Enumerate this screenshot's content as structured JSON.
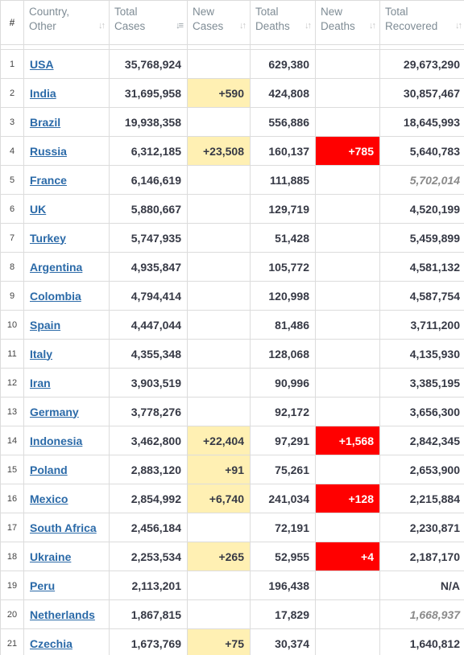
{
  "columns": {
    "num": "#",
    "country": [
      "Country,",
      "Other"
    ],
    "total_cases": [
      "Total",
      "Cases"
    ],
    "new_cases": [
      "New",
      "Cases"
    ],
    "total_deaths": [
      "Total",
      "Deaths"
    ],
    "new_deaths": [
      "New",
      "Deaths"
    ],
    "total_recovered": [
      "Total",
      "Recovered"
    ]
  },
  "icons": {
    "sort_default": "sort-arrows-icon",
    "sort_active": "sort-descending-icon"
  },
  "colors": {
    "new_cases_highlight": "#fff0b3",
    "new_deaths_highlight": "#ff0000",
    "link": "#2b6aa8"
  },
  "chart_data": {
    "type": "table",
    "headers": [
      "#",
      "Country, Other",
      "Total Cases",
      "New Cases",
      "Total Deaths",
      "New Deaths",
      "Total Recovered"
    ],
    "rows": [
      {
        "rank": "1",
        "country": "USA",
        "total_cases": "35,768,924",
        "new_cases": "",
        "total_deaths": "629,380",
        "new_deaths": "",
        "total_recovered": "29,673,290",
        "recovered_italic": false
      },
      {
        "rank": "2",
        "country": "India",
        "total_cases": "31,695,958",
        "new_cases": "+590",
        "total_deaths": "424,808",
        "new_deaths": "",
        "total_recovered": "30,857,467",
        "recovered_italic": false
      },
      {
        "rank": "3",
        "country": "Brazil",
        "total_cases": "19,938,358",
        "new_cases": "",
        "total_deaths": "556,886",
        "new_deaths": "",
        "total_recovered": "18,645,993",
        "recovered_italic": false
      },
      {
        "rank": "4",
        "country": "Russia",
        "total_cases": "6,312,185",
        "new_cases": "+23,508",
        "total_deaths": "160,137",
        "new_deaths": "+785",
        "total_recovered": "5,640,783",
        "recovered_italic": false
      },
      {
        "rank": "5",
        "country": "France",
        "total_cases": "6,146,619",
        "new_cases": "",
        "total_deaths": "111,885",
        "new_deaths": "",
        "total_recovered": "5,702,014",
        "recovered_italic": true
      },
      {
        "rank": "6",
        "country": "UK",
        "total_cases": "5,880,667",
        "new_cases": "",
        "total_deaths": "129,719",
        "new_deaths": "",
        "total_recovered": "4,520,199",
        "recovered_italic": false
      },
      {
        "rank": "7",
        "country": "Turkey",
        "total_cases": "5,747,935",
        "new_cases": "",
        "total_deaths": "51,428",
        "new_deaths": "",
        "total_recovered": "5,459,899",
        "recovered_italic": false
      },
      {
        "rank": "8",
        "country": "Argentina",
        "total_cases": "4,935,847",
        "new_cases": "",
        "total_deaths": "105,772",
        "new_deaths": "",
        "total_recovered": "4,581,132",
        "recovered_italic": false
      },
      {
        "rank": "9",
        "country": "Colombia",
        "total_cases": "4,794,414",
        "new_cases": "",
        "total_deaths": "120,998",
        "new_deaths": "",
        "total_recovered": "4,587,754",
        "recovered_italic": false
      },
      {
        "rank": "10",
        "country": "Spain",
        "total_cases": "4,447,044",
        "new_cases": "",
        "total_deaths": "81,486",
        "new_deaths": "",
        "total_recovered": "3,711,200",
        "recovered_italic": false
      },
      {
        "rank": "11",
        "country": "Italy",
        "total_cases": "4,355,348",
        "new_cases": "",
        "total_deaths": "128,068",
        "new_deaths": "",
        "total_recovered": "4,135,930",
        "recovered_italic": false
      },
      {
        "rank": "12",
        "country": "Iran",
        "total_cases": "3,903,519",
        "new_cases": "",
        "total_deaths": "90,996",
        "new_deaths": "",
        "total_recovered": "3,385,195",
        "recovered_italic": false
      },
      {
        "rank": "13",
        "country": "Germany",
        "total_cases": "3,778,276",
        "new_cases": "",
        "total_deaths": "92,172",
        "new_deaths": "",
        "total_recovered": "3,656,300",
        "recovered_italic": false
      },
      {
        "rank": "14",
        "country": "Indonesia",
        "total_cases": "3,462,800",
        "new_cases": "+22,404",
        "total_deaths": "97,291",
        "new_deaths": "+1,568",
        "total_recovered": "2,842,345",
        "recovered_italic": false
      },
      {
        "rank": "15",
        "country": "Poland",
        "total_cases": "2,883,120",
        "new_cases": "+91",
        "total_deaths": "75,261",
        "new_deaths": "",
        "total_recovered": "2,653,900",
        "recovered_italic": false
      },
      {
        "rank": "16",
        "country": "Mexico",
        "total_cases": "2,854,992",
        "new_cases": "+6,740",
        "total_deaths": "241,034",
        "new_deaths": "+128",
        "total_recovered": "2,215,884",
        "recovered_italic": false
      },
      {
        "rank": "17",
        "country": "South Africa",
        "total_cases": "2,456,184",
        "new_cases": "",
        "total_deaths": "72,191",
        "new_deaths": "",
        "total_recovered": "2,230,871",
        "recovered_italic": false
      },
      {
        "rank": "18",
        "country": "Ukraine",
        "total_cases": "2,253,534",
        "new_cases": "+265",
        "total_deaths": "52,955",
        "new_deaths": "+4",
        "total_recovered": "2,187,170",
        "recovered_italic": false
      },
      {
        "rank": "19",
        "country": "Peru",
        "total_cases": "2,113,201",
        "new_cases": "",
        "total_deaths": "196,438",
        "new_deaths": "",
        "total_recovered": "N/A",
        "recovered_italic": false
      },
      {
        "rank": "20",
        "country": "Netherlands",
        "total_cases": "1,867,815",
        "new_cases": "",
        "total_deaths": "17,829",
        "new_deaths": "",
        "total_recovered": "1,668,937",
        "recovered_italic": true
      },
      {
        "rank": "21",
        "country": "Czechia",
        "total_cases": "1,673,769",
        "new_cases": "+75",
        "total_deaths": "30,374",
        "new_deaths": "",
        "total_recovered": "1,640,812",
        "recovered_italic": false
      }
    ]
  }
}
